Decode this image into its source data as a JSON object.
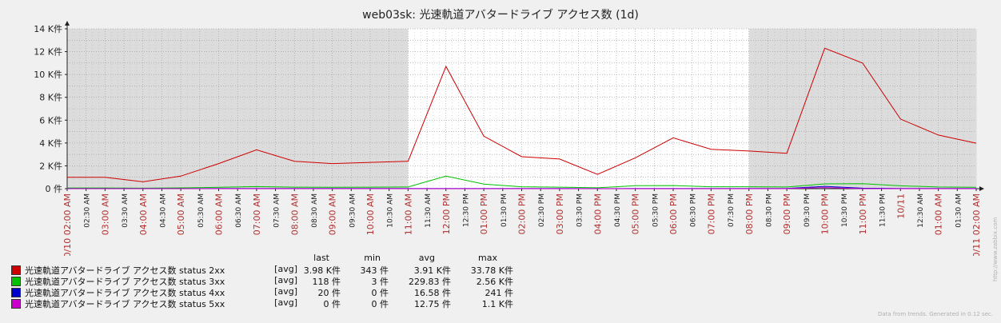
{
  "chart_data": {
    "type": "line",
    "title": "web03sk: 光速軌道アバタードライブ アクセス数 (1d)",
    "y_ticks": [
      "0 件",
      "2 K件",
      "4 K件",
      "6 K件",
      "8 K件",
      "10 K件",
      "12 K件",
      "14 K件"
    ],
    "ylim": [
      0,
      14000
    ],
    "x_range_hours": [
      0,
      24
    ],
    "x_ticks": [
      {
        "h": 0,
        "label": "10/10 02:00 AM",
        "major": true
      },
      {
        "h": 0.5,
        "label": "02:30 AM"
      },
      {
        "h": 1,
        "label": "03:00 AM",
        "major": true
      },
      {
        "h": 1.5,
        "label": "03:30 AM"
      },
      {
        "h": 2,
        "label": "04:00 AM",
        "major": true
      },
      {
        "h": 2.5,
        "label": "04:30 AM"
      },
      {
        "h": 3,
        "label": "05:00 AM",
        "major": true
      },
      {
        "h": 3.5,
        "label": "05:30 AM"
      },
      {
        "h": 4,
        "label": "06:00 AM",
        "major": true
      },
      {
        "h": 4.5,
        "label": "06:30 AM"
      },
      {
        "h": 5,
        "label": "07:00 AM",
        "major": true
      },
      {
        "h": 5.5,
        "label": "07:30 AM"
      },
      {
        "h": 6,
        "label": "08:00 AM",
        "major": true
      },
      {
        "h": 6.5,
        "label": "08:30 AM"
      },
      {
        "h": 7,
        "label": "09:00 AM",
        "major": true
      },
      {
        "h": 7.5,
        "label": "09:30 AM"
      },
      {
        "h": 8,
        "label": "10:00 AM",
        "major": true
      },
      {
        "h": 8.5,
        "label": "10:30 AM"
      },
      {
        "h": 9,
        "label": "11:00 AM",
        "major": true
      },
      {
        "h": 9.5,
        "label": "11:30 AM"
      },
      {
        "h": 10,
        "label": "12:00 PM",
        "major": true
      },
      {
        "h": 10.5,
        "label": "12:30 PM"
      },
      {
        "h": 11,
        "label": "01:00 PM",
        "major": true
      },
      {
        "h": 11.5,
        "label": "01:30 PM"
      },
      {
        "h": 12,
        "label": "02:00 PM",
        "major": true
      },
      {
        "h": 12.5,
        "label": "02:30 PM"
      },
      {
        "h": 13,
        "label": "03:00 PM",
        "major": true
      },
      {
        "h": 13.5,
        "label": "03:30 PM"
      },
      {
        "h": 14,
        "label": "04:00 PM",
        "major": true
      },
      {
        "h": 14.5,
        "label": "04:30 PM"
      },
      {
        "h": 15,
        "label": "05:00 PM",
        "major": true
      },
      {
        "h": 15.5,
        "label": "05:30 PM"
      },
      {
        "h": 16,
        "label": "06:00 PM",
        "major": true
      },
      {
        "h": 16.5,
        "label": "06:30 PM"
      },
      {
        "h": 17,
        "label": "07:00 PM",
        "major": true
      },
      {
        "h": 17.5,
        "label": "07:30 PM"
      },
      {
        "h": 18,
        "label": "08:00 PM",
        "major": true
      },
      {
        "h": 18.5,
        "label": "08:30 PM"
      },
      {
        "h": 19,
        "label": "09:00 PM",
        "major": true
      },
      {
        "h": 19.5,
        "label": "09:30 PM"
      },
      {
        "h": 20,
        "label": "10:00 PM",
        "major": true
      },
      {
        "h": 20.5,
        "label": "10:30 PM"
      },
      {
        "h": 21,
        "label": "11:00 PM",
        "major": true
      },
      {
        "h": 21.5,
        "label": "11:30 PM"
      },
      {
        "h": 22,
        "label": "10/11",
        "major": true
      },
      {
        "h": 22.5,
        "label": "12:30 AM"
      },
      {
        "h": 23,
        "label": "01:00 AM",
        "major": true
      },
      {
        "h": 23.5,
        "label": "01:30 AM"
      },
      {
        "h": 24,
        "label": "10/11 02:00 AM",
        "major": true
      }
    ],
    "work_period_hours": [
      9,
      18
    ],
    "series": [
      {
        "name": "光速軌道アバタードライブ アクセス数 status 2xx",
        "color": "#cc0000",
        "x": [
          0,
          1,
          2,
          3,
          4,
          5,
          6,
          7,
          8,
          9,
          10,
          11,
          12,
          13,
          14,
          15,
          16,
          17,
          18,
          19,
          20,
          21,
          22,
          23,
          24
        ],
        "y": [
          1000,
          1000,
          600,
          1100,
          2200,
          3400,
          2400,
          2200,
          2300,
          2400,
          10700,
          4600,
          2800,
          2600,
          1250,
          2700,
          4450,
          3450,
          3300,
          3100,
          12300,
          11000,
          6100,
          4700,
          3980
        ]
      },
      {
        "name": "光速軌道アバタードライブ アクセス数 status 3xx",
        "color": "#00c000",
        "x": [
          0,
          1,
          2,
          3,
          4,
          5,
          6,
          7,
          8,
          9,
          10,
          11,
          12,
          13,
          14,
          15,
          16,
          17,
          18,
          19,
          20,
          21,
          22,
          23,
          24
        ],
        "y": [
          60,
          60,
          40,
          70,
          120,
          180,
          130,
          120,
          130,
          150,
          1100,
          400,
          170,
          130,
          80,
          260,
          270,
          170,
          170,
          150,
          420,
          440,
          250,
          150,
          118
        ]
      },
      {
        "name": "光速軌道アバタードライブ アクセス数 status 4xx",
        "color": "#0000cc",
        "x": [
          0,
          1,
          2,
          3,
          4,
          5,
          6,
          7,
          8,
          9,
          10,
          11,
          12,
          13,
          14,
          15,
          16,
          17,
          18,
          19,
          20,
          21,
          22,
          23,
          24
        ],
        "y": [
          10,
          10,
          10,
          10,
          15,
          15,
          15,
          15,
          15,
          15,
          20,
          20,
          15,
          15,
          10,
          15,
          20,
          15,
          15,
          15,
          200,
          40,
          20,
          20,
          20
        ]
      },
      {
        "name": "光速軌道アバタードライブ アクセス数 status 5xx",
        "color": "#cc00cc",
        "x": [
          0,
          1,
          2,
          3,
          4,
          5,
          6,
          7,
          8,
          9,
          10,
          11,
          12,
          13,
          14,
          15,
          16,
          17,
          18,
          19,
          20,
          21,
          22,
          23,
          24
        ],
        "y": [
          0,
          0,
          0,
          0,
          0,
          0,
          0,
          0,
          0,
          0,
          0,
          0,
          0,
          0,
          0,
          0,
          0,
          0,
          0,
          0,
          100,
          0,
          0,
          0,
          0
        ]
      }
    ]
  },
  "legend": {
    "headers": {
      "last": "last",
      "min": "min",
      "avg": "avg",
      "max": "max"
    },
    "rows": [
      {
        "name": "光速軌道アバタードライブ アクセス数 status 2xx",
        "func": "[avg]",
        "last": "3.98 K件",
        "min": "343 件",
        "avg": "3.91 K件",
        "max": "33.78 K件",
        "color": "#cc0000"
      },
      {
        "name": "光速軌道アバタードライブ アクセス数 status 3xx",
        "func": "[avg]",
        "last": "118 件",
        "min": "3 件",
        "avg": "229.83 件",
        "max": "2.56 K件",
        "color": "#00c000"
      },
      {
        "name": "光速軌道アバタードライブ アクセス数 status 4xx",
        "func": "[avg]",
        "last": "20 件",
        "min": "0 件",
        "avg": "16.58 件",
        "max": "241 件",
        "color": "#0000cc"
      },
      {
        "name": "光速軌道アバタードライブ アクセス数 status 5xx",
        "func": "[avg]",
        "last": "0 件",
        "min": "0 件",
        "avg": "12.75 件",
        "max": "1.1 K件",
        "color": "#cc00cc"
      }
    ]
  },
  "footer": "Data from trends. Generated in 0.12 sec.",
  "watermark": "http://www.zabbix.com"
}
